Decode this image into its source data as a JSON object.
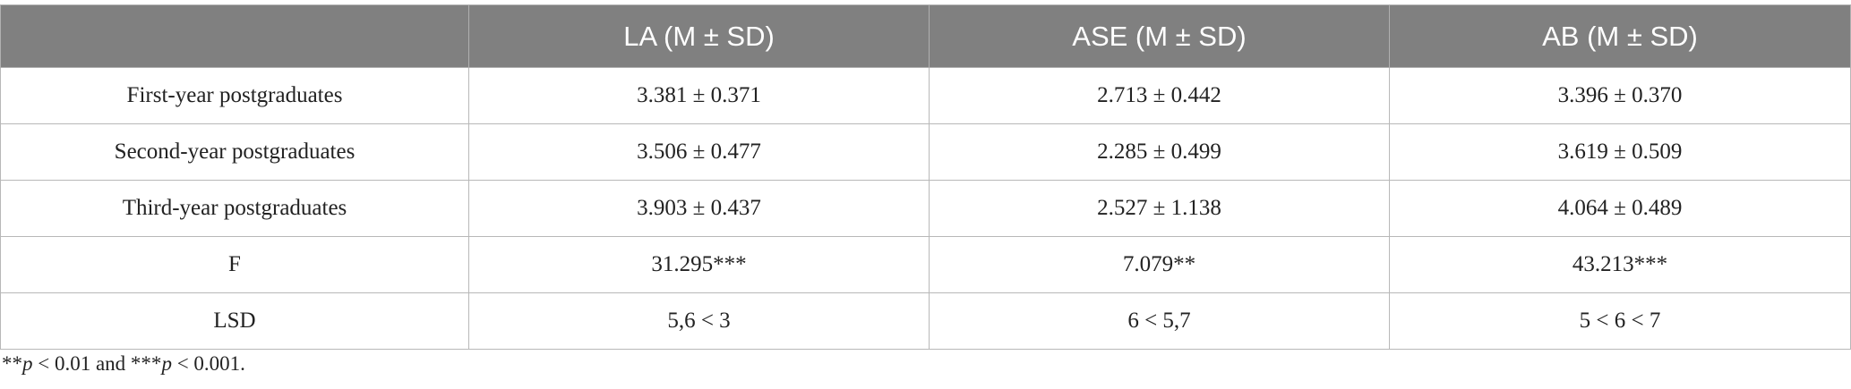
{
  "table": {
    "header": [
      "LA (M ± SD)",
      "ASE (M ± SD)",
      "AB (M ± SD)"
    ],
    "rows": [
      [
        "First-year postgraduates",
        "3.381 ± 0.371",
        "2.713 ± 0.442",
        "3.396 ± 0.370"
      ],
      [
        "Second-year postgraduates",
        "3.506 ± 0.477",
        "2.285 ± 0.499",
        "3.619 ± 0.509"
      ],
      [
        "Third-year postgraduates",
        "3.903 ± 0.437",
        "2.527 ± 1.138",
        "4.064 ± 0.489"
      ],
      [
        "F",
        "31.295***",
        "7.079**",
        "43.213***"
      ],
      [
        "LSD",
        "5,6 < 3",
        "6 < 5,7",
        "5 < 6 < 7"
      ]
    ],
    "footnote": [
      "**",
      "p",
      " < 0.01 and ***",
      "p",
      " < 0.001."
    ]
  }
}
